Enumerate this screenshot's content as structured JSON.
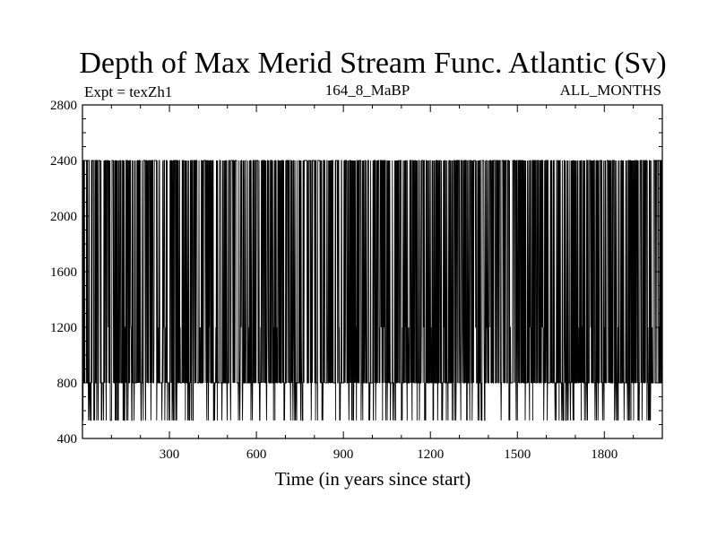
{
  "chart_data": {
    "type": "line",
    "title": "Depth of Max Merid Stream Func. Atlantic (Sv)",
    "experiment_label": "Expt = texZh1",
    "period_label": "164_8_MaBP",
    "months_label": "ALL_MONTHS",
    "xlabel": "Time (in years since start)",
    "ylabel": "",
    "xlim": [
      0,
      2000
    ],
    "ylim": [
      400,
      2800
    ],
    "x_ticks": [
      300,
      600,
      900,
      1200,
      1500,
      1800
    ],
    "y_ticks": [
      400,
      800,
      1200,
      1600,
      2000,
      2400,
      2800
    ],
    "y_tick_labels": [
      "400",
      "800",
      "1200",
      "1600",
      "2000",
      "2400",
      "2800"
    ],
    "x_tick_labels": [
      "300",
      "600",
      "900",
      "1200",
      "1500",
      "1800"
    ],
    "series": [
      {
        "color": "#000000",
        "levels": [
          530,
          800,
          1200,
          2400
        ],
        "dominant_range": [
          800,
          2400
        ],
        "x_start": 1,
        "x_end": 2000,
        "n_points": 2000
      }
    ]
  }
}
